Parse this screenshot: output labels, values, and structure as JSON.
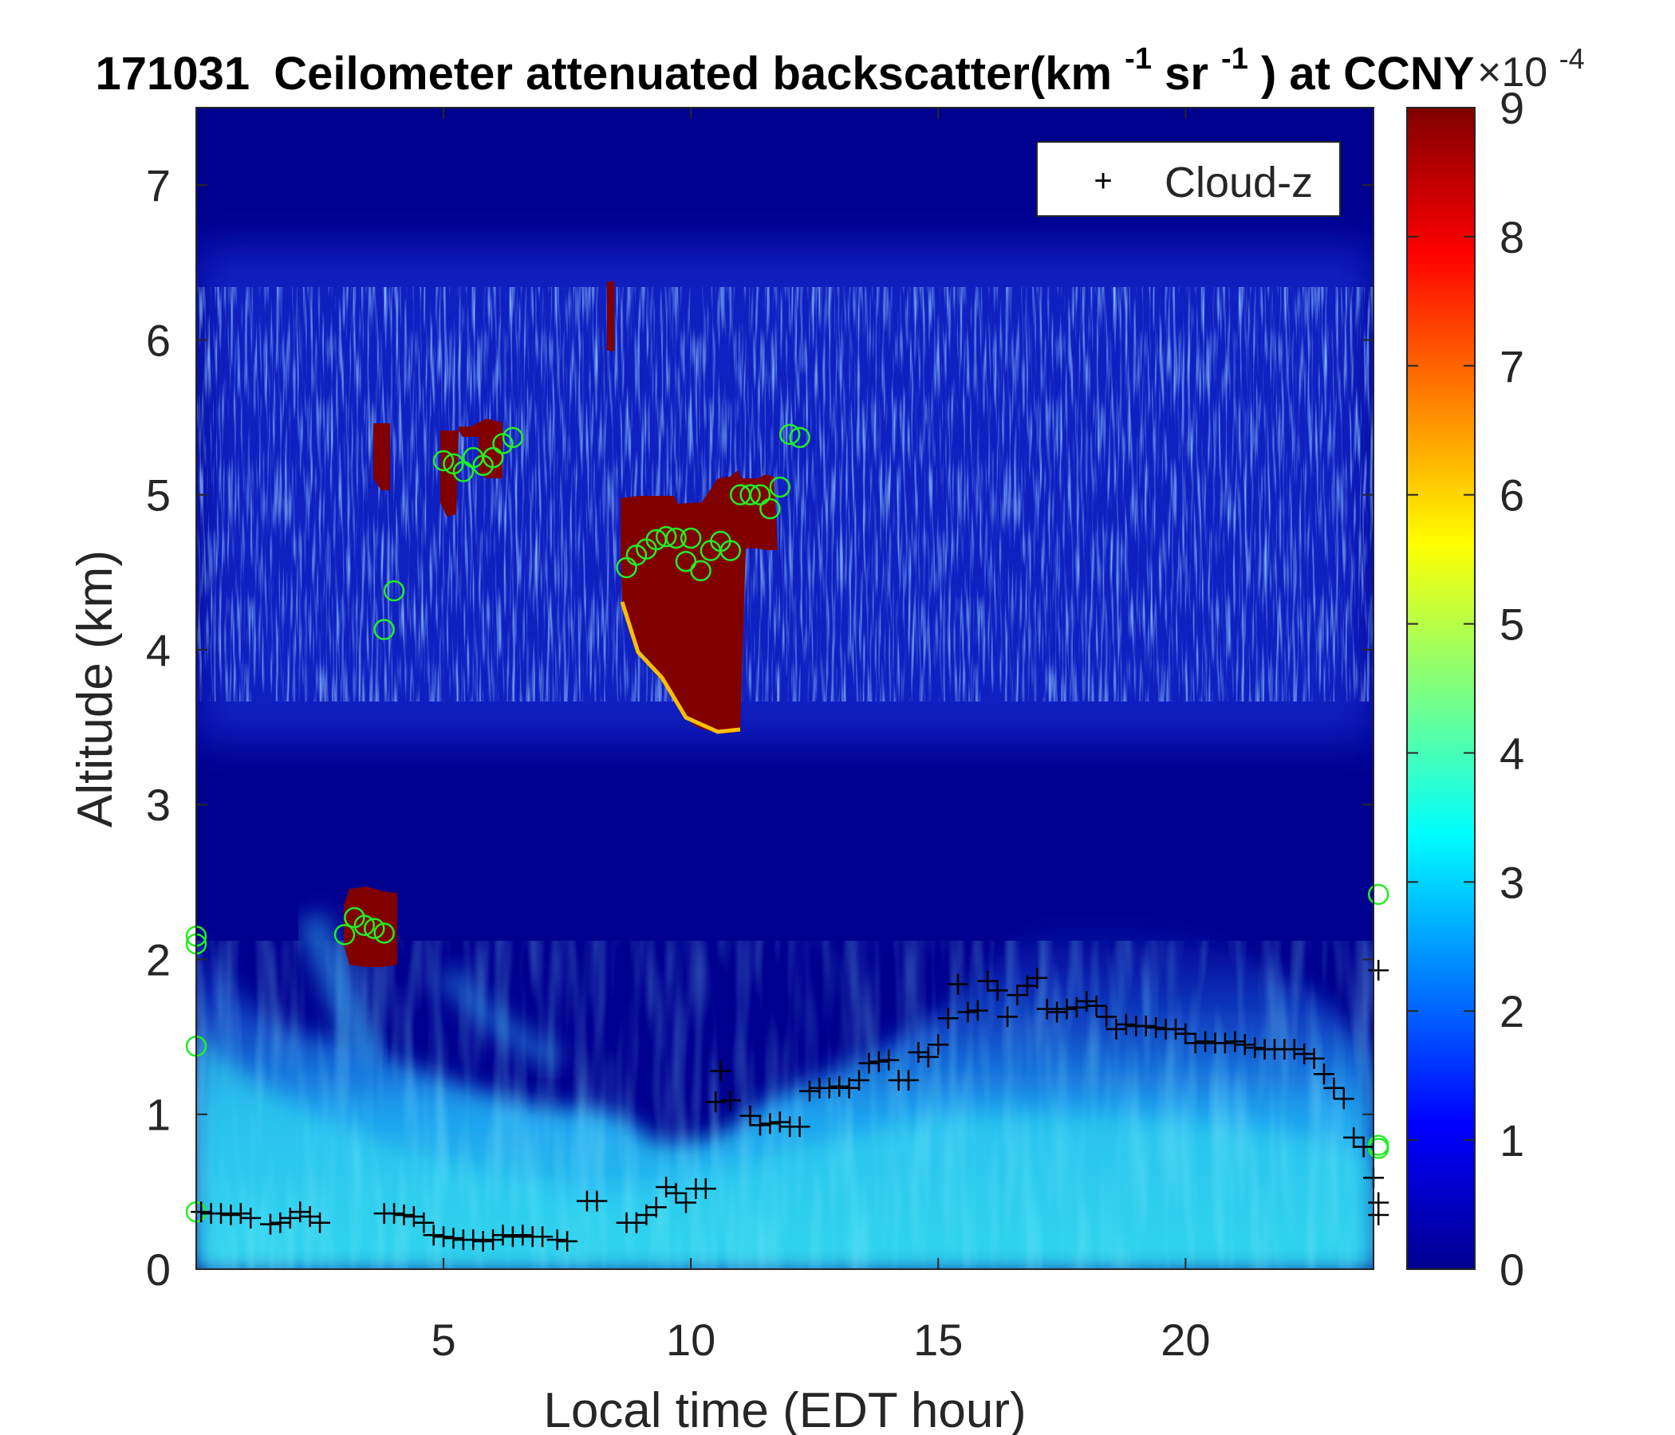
{
  "chart_data": {
    "type": "heatmap",
    "title_date": "171031",
    "title_main": "Ceilometer attenuated backscatter(km",
    "title_sup1": "-1",
    "title_mid": "sr",
    "title_sup2": "-1",
    "title_tail": ") at CCNY",
    "xlabel": "Local time (EDT hour)",
    "ylabel": "Altitude (km)",
    "xlim": [
      0,
      23.8
    ],
    "ylim": [
      0,
      7.5
    ],
    "xticks": [
      5,
      10,
      15,
      20
    ],
    "yticks": [
      0,
      1,
      2,
      3,
      4,
      5,
      6,
      7
    ],
    "colorbar": {
      "min": 0,
      "max": 9,
      "ticks": [
        0,
        1,
        2,
        3,
        4,
        5,
        6,
        7,
        8,
        9
      ],
      "exponent_base": "×10",
      "exponent_power": "-4",
      "colormap": "jet"
    },
    "legend": {
      "position": "top-right",
      "entries": [
        {
          "marker": "+",
          "label": "Cloud-z"
        }
      ]
    },
    "cloud_z": [
      [
        0.1,
        0.37
      ],
      [
        0.3,
        0.36
      ],
      [
        0.5,
        0.36
      ],
      [
        0.7,
        0.35
      ],
      [
        0.9,
        0.36
      ],
      [
        1.1,
        0.33
      ],
      [
        1.5,
        0.29
      ],
      [
        1.7,
        0.3
      ],
      [
        1.9,
        0.33
      ],
      [
        2.1,
        0.37
      ],
      [
        2.3,
        0.34
      ],
      [
        2.5,
        0.3
      ],
      [
        3.8,
        0.36
      ],
      [
        4.0,
        0.36
      ],
      [
        4.2,
        0.35
      ],
      [
        4.4,
        0.34
      ],
      [
        4.6,
        0.3
      ],
      [
        4.8,
        0.22
      ],
      [
        5.0,
        0.21
      ],
      [
        5.2,
        0.2
      ],
      [
        5.4,
        0.19
      ],
      [
        5.6,
        0.19
      ],
      [
        5.8,
        0.18
      ],
      [
        6.0,
        0.19
      ],
      [
        6.2,
        0.22
      ],
      [
        6.4,
        0.21
      ],
      [
        6.6,
        0.22
      ],
      [
        6.8,
        0.21
      ],
      [
        7.0,
        0.21
      ],
      [
        7.3,
        0.19
      ],
      [
        7.5,
        0.18
      ],
      [
        7.9,
        0.44
      ],
      [
        8.1,
        0.44
      ],
      [
        8.7,
        0.3
      ],
      [
        8.9,
        0.3
      ],
      [
        9.1,
        0.35
      ],
      [
        9.3,
        0.4
      ],
      [
        9.5,
        0.53
      ],
      [
        9.7,
        0.49
      ],
      [
        9.9,
        0.43
      ],
      [
        10.1,
        0.52
      ],
      [
        10.3,
        0.52
      ],
      [
        10.5,
        1.08
      ],
      [
        10.6,
        1.28
      ],
      [
        10.8,
        1.09
      ],
      [
        11.2,
        0.99
      ],
      [
        11.4,
        0.93
      ],
      [
        11.6,
        0.94
      ],
      [
        11.8,
        0.95
      ],
      [
        12.0,
        0.92
      ],
      [
        12.2,
        0.92
      ],
      [
        12.4,
        1.15
      ],
      [
        12.6,
        1.17
      ],
      [
        12.8,
        1.17
      ],
      [
        13.0,
        1.18
      ],
      [
        13.2,
        1.17
      ],
      [
        13.4,
        1.22
      ],
      [
        13.6,
        1.33
      ],
      [
        13.8,
        1.34
      ],
      [
        14.0,
        1.35
      ],
      [
        14.2,
        1.22
      ],
      [
        14.4,
        1.22
      ],
      [
        14.6,
        1.4
      ],
      [
        14.8,
        1.37
      ],
      [
        15.0,
        1.45
      ],
      [
        15.2,
        1.62
      ],
      [
        15.4,
        1.84
      ],
      [
        15.6,
        1.66
      ],
      [
        15.8,
        1.67
      ],
      [
        16.0,
        1.86
      ],
      [
        16.2,
        1.8
      ],
      [
        16.4,
        1.63
      ],
      [
        16.6,
        1.77
      ],
      [
        16.8,
        1.83
      ],
      [
        17.0,
        1.88
      ],
      [
        17.2,
        1.68
      ],
      [
        17.4,
        1.66
      ],
      [
        17.6,
        1.68
      ],
      [
        17.8,
        1.69
      ],
      [
        18.0,
        1.73
      ],
      [
        18.2,
        1.7
      ],
      [
        18.4,
        1.63
      ],
      [
        18.6,
        1.55
      ],
      [
        18.8,
        1.58
      ],
      [
        19.0,
        1.57
      ],
      [
        19.2,
        1.57
      ],
      [
        19.4,
        1.56
      ],
      [
        19.6,
        1.55
      ],
      [
        19.8,
        1.55
      ],
      [
        20.0,
        1.52
      ],
      [
        20.2,
        1.46
      ],
      [
        20.4,
        1.47
      ],
      [
        20.6,
        1.46
      ],
      [
        20.8,
        1.46
      ],
      [
        21.0,
        1.47
      ],
      [
        21.2,
        1.45
      ],
      [
        21.4,
        1.43
      ],
      [
        21.6,
        1.42
      ],
      [
        21.8,
        1.42
      ],
      [
        22.0,
        1.42
      ],
      [
        22.2,
        1.42
      ],
      [
        22.4,
        1.39
      ],
      [
        22.6,
        1.36
      ],
      [
        22.8,
        1.26
      ],
      [
        23.0,
        1.17
      ],
      [
        23.2,
        1.1
      ],
      [
        23.4,
        0.85
      ],
      [
        23.6,
        0.79
      ],
      [
        23.8,
        0.59
      ],
      [
        23.9,
        0.43
      ],
      [
        23.9,
        0.35
      ],
      [
        23.9,
        1.93
      ]
    ],
    "green_circles": [
      [
        0.0,
        2.15
      ],
      [
        0.0,
        2.1
      ],
      [
        0.0,
        1.44
      ],
      [
        0.0,
        0.37
      ],
      [
        3.0,
        2.16
      ],
      [
        3.2,
        2.27
      ],
      [
        3.4,
        2.22
      ],
      [
        3.6,
        2.2
      ],
      [
        3.8,
        2.17
      ],
      [
        3.8,
        4.13
      ],
      [
        4.0,
        4.38
      ],
      [
        5.0,
        5.22
      ],
      [
        5.2,
        5.2
      ],
      [
        5.4,
        5.15
      ],
      [
        5.6,
        5.24
      ],
      [
        5.8,
        5.19
      ],
      [
        6.0,
        5.24
      ],
      [
        6.2,
        5.33
      ],
      [
        6.4,
        5.37
      ],
      [
        8.7,
        4.53
      ],
      [
        8.9,
        4.61
      ],
      [
        9.1,
        4.65
      ],
      [
        9.3,
        4.71
      ],
      [
        9.5,
        4.73
      ],
      [
        9.7,
        4.72
      ],
      [
        9.9,
        4.57
      ],
      [
        10.0,
        4.72
      ],
      [
        10.2,
        4.51
      ],
      [
        10.4,
        4.64
      ],
      [
        10.6,
        4.7
      ],
      [
        10.8,
        4.64
      ],
      [
        11.0,
        5.0
      ],
      [
        11.2,
        5.0
      ],
      [
        11.4,
        5.0
      ],
      [
        11.6,
        4.91
      ],
      [
        11.8,
        5.05
      ],
      [
        12.0,
        5.39
      ],
      [
        12.2,
        5.37
      ],
      [
        23.9,
        2.42
      ],
      [
        23.9,
        0.8
      ],
      [
        23.9,
        0.78
      ]
    ]
  }
}
